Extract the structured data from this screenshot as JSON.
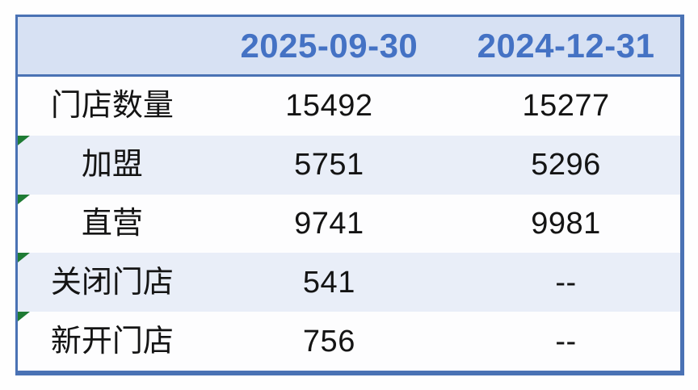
{
  "chart_data": {
    "type": "table",
    "title": "",
    "columns": [
      "",
      "2025-09-30",
      "2024-12-31"
    ],
    "rows": [
      [
        "门店数量",
        15492,
        15277
      ],
      [
        "加盟",
        5751,
        5296
      ],
      [
        "直营",
        9741,
        9981
      ],
      [
        "关闭门店",
        541,
        "--"
      ],
      [
        "新开门店",
        756,
        "--"
      ]
    ]
  },
  "table": {
    "columns": [
      "",
      "2025-09-30",
      "2024-12-31"
    ],
    "rows": [
      {
        "label": "门店数量",
        "v1": "15492",
        "v2": "15277"
      },
      {
        "label": "加盟",
        "v1": "5751",
        "v2": "5296"
      },
      {
        "label": "直营",
        "v1": "9741",
        "v2": "9981"
      },
      {
        "label": "关闭门店",
        "v1": "541",
        "v2": "--"
      },
      {
        "label": "新开门店",
        "v1": "756",
        "v2": "--"
      }
    ]
  },
  "icons": {
    "flag_triangle": "green-corner-flag"
  },
  "colors": {
    "header_bg": "#d7e1f3",
    "header_text": "#4472c4",
    "border": "#4a72b4",
    "row_bg": "#fdfdfe",
    "alt_row_bg": "#e9eef8",
    "flag_green": "#1e7b34",
    "text": "#141414"
  }
}
